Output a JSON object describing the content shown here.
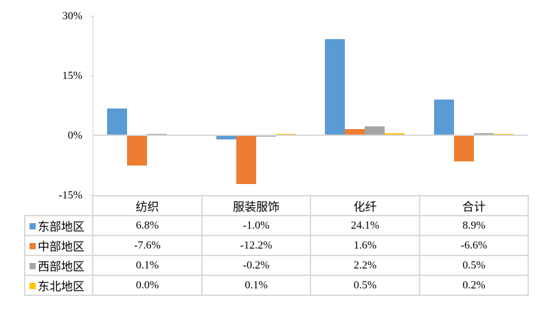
{
  "chart_data": {
    "type": "bar",
    "title": "",
    "xlabel": "",
    "ylabel": "",
    "ylim": [
      -15,
      30
    ],
    "yticks": [
      "30%",
      "15%",
      "0%",
      "-15%"
    ],
    "grid": false,
    "legend_position": "data-table",
    "categories": [
      "纺织",
      "服装服饰",
      "化纤",
      "合计"
    ],
    "series": [
      {
        "name": "东部地区",
        "color": "#5B9BD5",
        "values": [
          6.8,
          -1.0,
          24.1,
          8.9
        ],
        "labels": [
          "6.8%",
          "-1.0%",
          "24.1%",
          "8.9%"
        ]
      },
      {
        "name": "中部地区",
        "color": "#ED7D31",
        "values": [
          -7.6,
          -12.2,
          1.6,
          -6.6
        ],
        "labels": [
          "-7.6%",
          "-12.2%",
          "1.6%",
          "-6.6%"
        ]
      },
      {
        "name": "西部地区",
        "color": "#A5A5A5",
        "values": [
          0.1,
          -0.2,
          2.2,
          0.5
        ],
        "labels": [
          "0.1%",
          "-0.2%",
          "2.2%",
          "0.5%"
        ]
      },
      {
        "name": "东北地区",
        "color": "#FFC000",
        "values": [
          0.0,
          0.1,
          0.5,
          0.2
        ],
        "labels": [
          "0.0%",
          "0.1%",
          "0.5%",
          "0.2%"
        ]
      }
    ]
  }
}
